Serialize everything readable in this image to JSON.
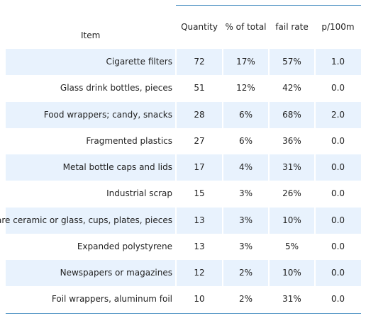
{
  "chart_data": {
    "type": "table",
    "columns": {
      "item": "Item",
      "quantity": "Quantity",
      "pct_total": "% of total",
      "fail_rate": "fail rate",
      "p100m": "p/100m"
    },
    "rows": [
      {
        "item": "Cigarette filters",
        "quantity": "72",
        "pct_total": "17%",
        "fail_rate": "57%",
        "p100m": "1.0"
      },
      {
        "item": "Glass drink bottles, pieces",
        "quantity": "51",
        "pct_total": "12%",
        "fail_rate": "42%",
        "p100m": "0.0"
      },
      {
        "item": "Food wrappers; candy, snacks",
        "quantity": "28",
        "pct_total": "6%",
        "fail_rate": "68%",
        "p100m": "2.0"
      },
      {
        "item": "Fragmented plastics",
        "quantity": "27",
        "pct_total": "6%",
        "fail_rate": "36%",
        "p100m": "0.0"
      },
      {
        "item": "Metal bottle caps and lids",
        "quantity": "17",
        "pct_total": "4%",
        "fail_rate": "31%",
        "p100m": "0.0"
      },
      {
        "item": "Industrial scrap",
        "quantity": "15",
        "pct_total": "3%",
        "fail_rate": "26%",
        "p100m": "0.0"
      },
      {
        "item": "Tableware ceramic or glass, cups, plates, pieces",
        "quantity": "13",
        "pct_total": "3%",
        "fail_rate": "10%",
        "p100m": "0.0"
      },
      {
        "item": "Expanded polystyrene",
        "quantity": "13",
        "pct_total": "3%",
        "fail_rate": "5%",
        "p100m": "0.0"
      },
      {
        "item": "Newspapers or magazines",
        "quantity": "12",
        "pct_total": "2%",
        "fail_rate": "10%",
        "p100m": "0.0"
      },
      {
        "item": "Foil wrappers, aluminum foil",
        "quantity": "10",
        "pct_total": "2%",
        "fail_rate": "31%",
        "p100m": "0.0"
      }
    ],
    "colors": {
      "row_shade": "#e8f2fd",
      "rule": "#4a90c2",
      "text": "#222222"
    }
  }
}
